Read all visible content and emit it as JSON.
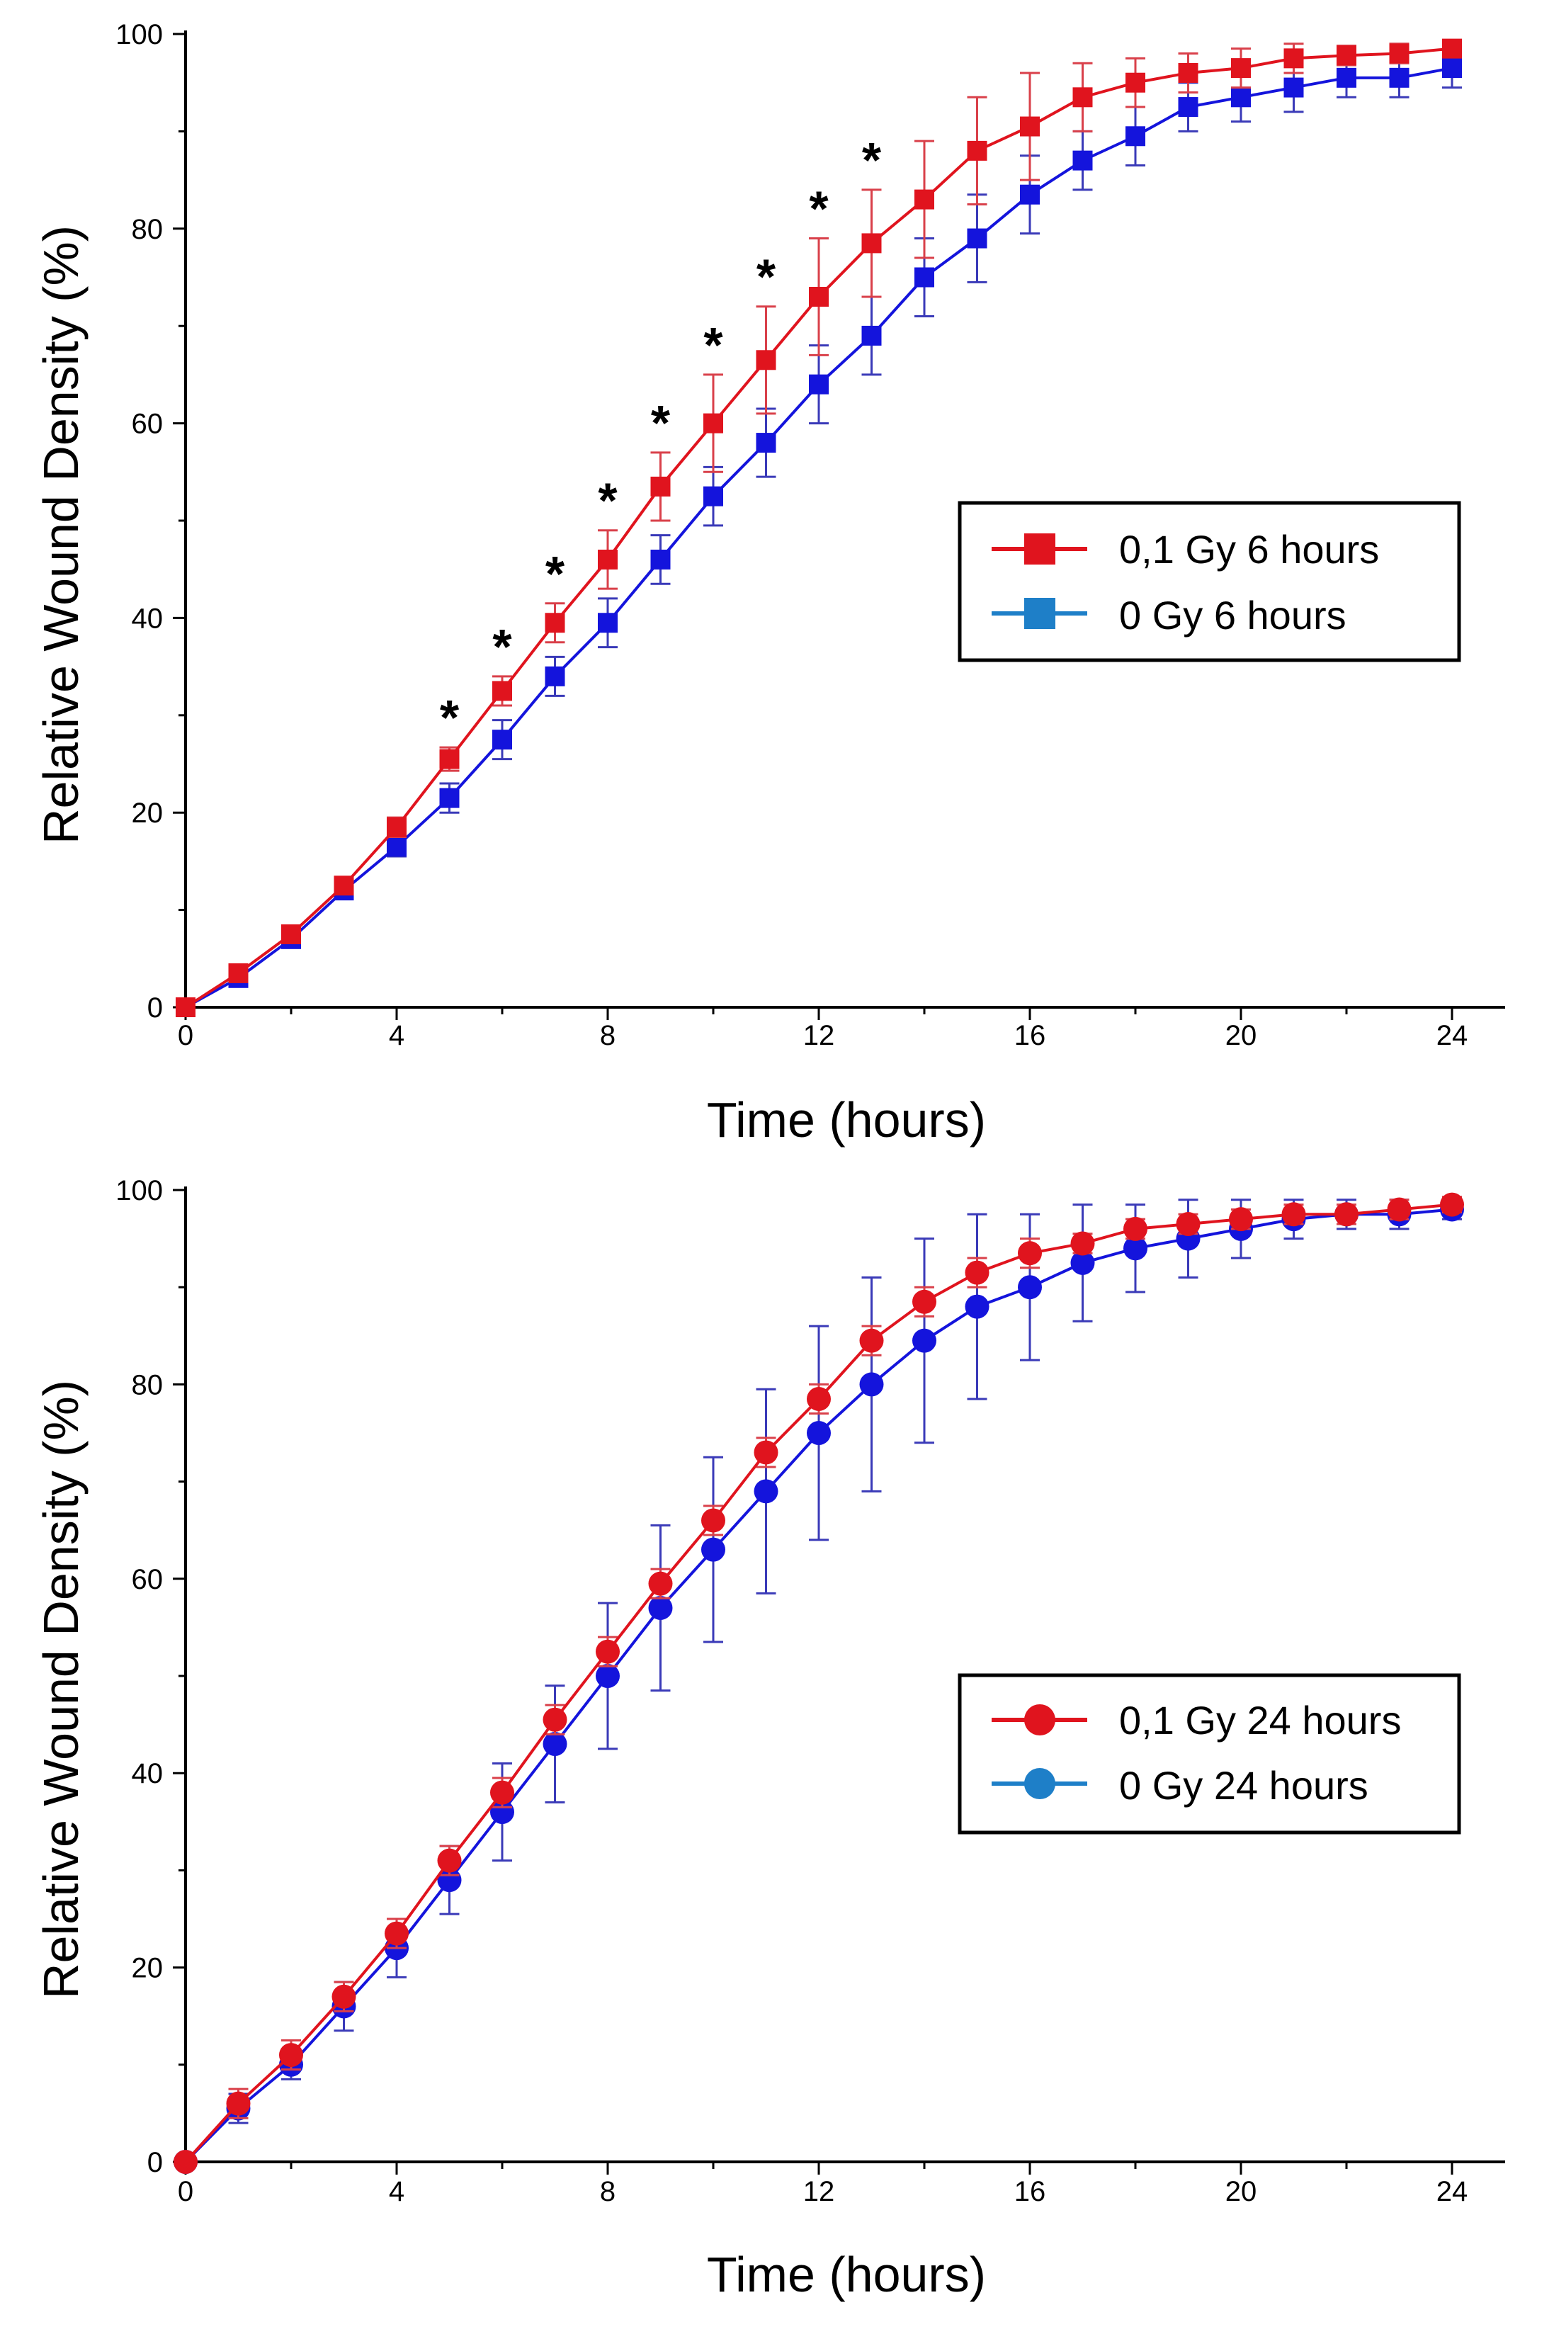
{
  "colors": {
    "treated": "#e0141e",
    "control": "#1414dc",
    "treated_err": "#d9404a",
    "control_err": "#3a3ab8",
    "legend_control_marker": "#1e7fc8"
  },
  "chart_data": [
    {
      "type": "line",
      "marker": "square",
      "xlabel": "Time (hours)",
      "ylabel": "Relative Wound Density (%)",
      "xlim": [
        0,
        24
      ],
      "ylim": [
        0,
        100
      ],
      "xticks": [
        "0",
        "4",
        "8",
        "12",
        "16",
        "20",
        "24"
      ],
      "yticks": [
        "0",
        "20",
        "40",
        "60",
        "80",
        "100"
      ],
      "legend_position": "middle-right",
      "x": [
        0,
        1,
        2,
        3,
        4,
        5,
        6,
        7,
        8,
        9,
        10,
        11,
        12,
        13,
        14,
        15,
        16,
        17,
        18,
        19,
        20,
        21,
        22,
        23,
        24
      ],
      "series": [
        {
          "name": "0,1 Gy 6 hours",
          "color": "treated",
          "values": [
            0,
            3.5,
            7.5,
            12.5,
            18.5,
            25.5,
            32.5,
            39.5,
            46,
            53.5,
            60,
            66.5,
            73,
            78.5,
            83,
            88,
            90.5,
            93.5,
            95,
            96,
            96.5,
            97.5,
            97.8,
            98,
            98.5
          ],
          "errors": [
            0,
            0.5,
            0.6,
            0.8,
            1,
            1.2,
            1.5,
            2,
            3,
            3.5,
            5,
            5.5,
            6,
            5.5,
            6,
            5.5,
            5.5,
            3.5,
            2.5,
            2,
            2,
            1.5,
            1,
            1,
            0.8
          ]
        },
        {
          "name": "0 Gy 6 hours",
          "color": "control",
          "values": [
            0,
            3,
            7,
            12,
            16.5,
            21.5,
            27.5,
            34,
            39.5,
            46,
            52.5,
            58,
            64,
            69,
            75,
            79,
            83.5,
            87,
            89.5,
            92.5,
            93.5,
            94.5,
            95.5,
            95.5,
            96.5
          ],
          "errors": [
            0,
            0.5,
            0.6,
            0.8,
            1,
            1.5,
            2,
            2,
            2.5,
            2.5,
            3,
            3.5,
            4,
            4,
            4,
            4.5,
            4,
            3,
            3,
            2.5,
            2.5,
            2.5,
            2,
            2,
            2
          ]
        }
      ],
      "annotations": {
        "marker": "*",
        "x": [
          5,
          6,
          7,
          8,
          9,
          10,
          11,
          12,
          13
        ]
      }
    },
    {
      "type": "line",
      "marker": "circle",
      "xlabel": "Time (hours)",
      "ylabel": "Relative Wound Density (%)",
      "xlim": [
        0,
        24
      ],
      "ylim": [
        0,
        100
      ],
      "xticks": [
        "0",
        "4",
        "8",
        "12",
        "16",
        "20",
        "24"
      ],
      "yticks": [
        "0",
        "20",
        "40",
        "60",
        "80",
        "100"
      ],
      "legend_position": "middle-right",
      "x": [
        0,
        1,
        2,
        3,
        4,
        5,
        6,
        7,
        8,
        9,
        10,
        11,
        12,
        13,
        14,
        15,
        16,
        17,
        18,
        19,
        20,
        21,
        22,
        23,
        24
      ],
      "series": [
        {
          "name": "0,1 Gy 24 hours",
          "color": "treated",
          "values": [
            0,
            6,
            11,
            17,
            23.5,
            31,
            38,
            45.5,
            52.5,
            59.5,
            66,
            73,
            78.5,
            84.5,
            88.5,
            91.5,
            93.5,
            94.5,
            96,
            96.5,
            97,
            97.5,
            97.5,
            98,
            98.5
          ],
          "errors": [
            0,
            1.5,
            1.5,
            1.5,
            1.5,
            1.5,
            1.5,
            1.5,
            1.5,
            1.5,
            1.5,
            1.5,
            1.5,
            1.5,
            1.5,
            1.5,
            1.5,
            1,
            1,
            1,
            1,
            1,
            1,
            1,
            0.8
          ]
        },
        {
          "name": "0 Gy 24 hours",
          "color": "control",
          "values": [
            0,
            5.5,
            10,
            16,
            22,
            29,
            36,
            43,
            50,
            57,
            63,
            69,
            75,
            80,
            84.5,
            88,
            90,
            92.5,
            94,
            95,
            96,
            97,
            97.5,
            97.5,
            98
          ],
          "errors": [
            0,
            1.5,
            1.5,
            2.5,
            3,
            3.5,
            5,
            6,
            7.5,
            8.5,
            9.5,
            10.5,
            11,
            11,
            10.5,
            9.5,
            7.5,
            6,
            4.5,
            4,
            3,
            2,
            1.5,
            1.5,
            1
          ]
        }
      ]
    }
  ]
}
